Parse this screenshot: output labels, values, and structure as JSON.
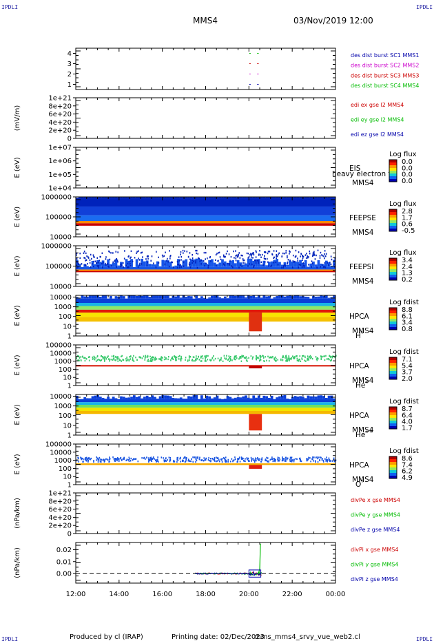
{
  "header": {
    "corner_label": "IPDLI",
    "spacecraft": "MMS4",
    "datetime": "03/Nov/2019 12:00"
  },
  "footer": {
    "producer": "Produced by cl (IRAP)",
    "printing_date": "Printing date: 02/Dec/2023",
    "file_name": "mms_mms4_srvy_vue_web2.cl"
  },
  "chart_data": {
    "type": "heatmap",
    "x_ticks": [
      "12:00",
      "14:00",
      "16:00",
      "18:00",
      "20:00",
      "22:00",
      "00:00"
    ],
    "x_range_hours": [
      12,
      24
    ],
    "panels": [
      {
        "id": "burst",
        "plot": "availability",
        "y_ticks": [
          "1",
          "2",
          "3",
          "4"
        ],
        "ylim": [
          0.5,
          4.5
        ],
        "legend": [
          {
            "label": "des dist burst SC1 MMS1",
            "color": "#0000aa"
          },
          {
            "label": "des dist burst SC2 MMS2",
            "color": "#cc00cc"
          },
          {
            "label": "des dist burst SC3 MMS3",
            "color": "#cc0000"
          },
          {
            "label": "des dist burst SC4 MMS4",
            "color": "#00bb00"
          }
        ],
        "segments": [
          {
            "sc": 1,
            "t": [
              20.02,
              20.08
            ]
          },
          {
            "sc": 1,
            "t": [
              20.38,
              20.45
            ]
          },
          {
            "sc": 2,
            "t": [
              20.02,
              20.08
            ]
          },
          {
            "sc": 2,
            "t": [
              20.38,
              20.45
            ]
          },
          {
            "sc": 3,
            "t": [
              20.02,
              20.08
            ]
          },
          {
            "sc": 3,
            "t": [
              20.38,
              20.45
            ]
          },
          {
            "sc": 4,
            "t": [
              20.02,
              20.08
            ]
          },
          {
            "sc": 4,
            "t": [
              20.38,
              20.45
            ]
          }
        ]
      },
      {
        "id": "edi",
        "plot": "line",
        "ylabel": "(mV/m)",
        "y_ticks": [
          "0",
          "2e+20",
          "4e+20",
          "6e+20",
          "8e+20",
          "1e+21"
        ],
        "ylim": [
          0,
          1e+21
        ],
        "legend": [
          {
            "label": "edi ex gse l2 MMS4",
            "color": "#cc0000"
          },
          {
            "label": "edi ey gse l2 MMS4",
            "color": "#00bb00"
          },
          {
            "label": "edi ez gse l2 MMS4",
            "color": "#0000aa"
          }
        ]
      },
      {
        "id": "eis",
        "plot": "spectrogram",
        "ylabel": "E (eV)",
        "y_ticks": [
          "1e+04",
          "1e+05",
          "1e+06",
          "1e+07"
        ],
        "ylim": [
          10000.0,
          10000000.0
        ],
        "instrument": "EIS",
        "instrument_sub": "MMS4",
        "overlay": "heavy electron to",
        "cbar_title": "Log flux",
        "cbar_ticks": [
          "0.0",
          "0.0",
          "0.0",
          "0.0"
        ]
      },
      {
        "id": "feepse",
        "plot": "spectrogram",
        "ylabel": "E (eV)",
        "y_ticks": [
          "10000",
          "100000",
          "1000000"
        ],
        "ylim": [
          10000,
          1000000
        ],
        "instrument": "FEEPSE",
        "instrument_sub": "MMS4",
        "cbar_title": "Log flux",
        "cbar_ticks": [
          "2.8",
          "1.7",
          "0.6",
          "-0.5"
        ],
        "coverage": [
          12,
          24
        ],
        "bands": [
          {
            "lo": 36000,
            "hi": 48000,
            "color": "#c80000"
          },
          {
            "lo": 48000,
            "hi": 62000,
            "color": "#ff8a00"
          },
          {
            "lo": 62000,
            "hi": 120000,
            "color": "#1a6cf0"
          },
          {
            "lo": 120000,
            "hi": 330000,
            "color": "#1140d8"
          },
          {
            "lo": 330000,
            "hi": 900000,
            "color": "#0022bb"
          }
        ]
      },
      {
        "id": "feepsi",
        "plot": "spectrogram",
        "ylabel": "E (eV)",
        "y_ticks": [
          "10000",
          "100000",
          "1000000"
        ],
        "ylim": [
          10000,
          1000000
        ],
        "instrument": "FEEPSI",
        "instrument_sub": "MMS4",
        "cbar_title": "Log flux",
        "cbar_ticks": [
          "3.4",
          "2.4",
          "1.3",
          "0.2"
        ],
        "coverage": [
          12,
          24
        ],
        "bands": [
          {
            "lo": 50000,
            "hi": 58000,
            "color": "#c80000"
          },
          {
            "lo": 58000,
            "hi": 68000,
            "color": "#ff9a00"
          },
          {
            "lo": 68000,
            "hi": 90000,
            "color": "#1655e8"
          }
        ],
        "speckle": {
          "lo": 90000,
          "hi": 650000,
          "color": "#0022bb"
        }
      },
      {
        "id": "hpca_h",
        "plot": "spectrogram",
        "ylabel": "E (eV)",
        "y_ticks": [
          "1",
          "10",
          "100",
          "1000",
          "10000"
        ],
        "ylim": [
          1,
          15000
        ],
        "instrument": "HPCA",
        "instrument_sub": "MMS4",
        "species": "H",
        "species_charge": "+",
        "cbar_title": "Log fdist",
        "cbar_ticks": [
          "8.8",
          "6.1",
          "3.4",
          "0.8"
        ],
        "coverage": [
          12,
          24
        ],
        "bands": [
          {
            "lo": 2500,
            "hi": 7000,
            "color": "#0a3fd8"
          },
          {
            "lo": 1200,
            "hi": 2500,
            "color": "#18b4e8"
          },
          {
            "lo": 500,
            "hi": 1200,
            "color": "#8ee86a"
          },
          {
            "lo": 250,
            "hi": 500,
            "color": "#e0180a"
          },
          {
            "lo": 90,
            "hi": 250,
            "color": "#f8e200"
          },
          {
            "lo": 30,
            "hi": 90,
            "color": "#f5c000"
          }
        ],
        "event": {
          "t": [
            20.0,
            20.6
          ],
          "lo": 3,
          "hi": 250,
          "color": "#e03010"
        }
      },
      {
        "id": "hpca_he",
        "plot": "spectrogram",
        "ylabel": "E (eV)",
        "y_ticks": [
          "1",
          "10",
          "100",
          "1000",
          "10000",
          "100000"
        ],
        "ylim": [
          1,
          100000
        ],
        "instrument": "HPCA",
        "instrument_sub": "MMS4",
        "species": "He",
        "species_charge": "+",
        "cbar_title": "Log fdist",
        "cbar_ticks": [
          "7.1",
          "5.4",
          "3.7",
          "2.0"
        ],
        "coverage": [
          12,
          24
        ],
        "bands": [
          {
            "lo": 220,
            "hi": 330,
            "color": "#d81a0a"
          }
        ],
        "speckle": {
          "lo": 1200,
          "hi": 6000,
          "color": "#36c86a"
        },
        "event": {
          "t": [
            20.0,
            20.6
          ],
          "lo": 130,
          "hi": 260,
          "color": "#c00000"
        }
      },
      {
        "id": "hpca_hepp",
        "plot": "spectrogram",
        "ylabel": "E (eV)",
        "y_ticks": [
          "1",
          "10",
          "100",
          "1000",
          "10000"
        ],
        "ylim": [
          1,
          15000
        ],
        "instrument": "HPCA",
        "instrument_sub": "MMS4",
        "species": "He",
        "species_charge": "++",
        "cbar_title": "Log fdist",
        "cbar_ticks": [
          "8.7",
          "6.4",
          "4.0",
          "1.7"
        ],
        "coverage": [
          12,
          24
        ],
        "bands": [
          {
            "lo": 2400,
            "hi": 5000,
            "color": "#0a3fd8"
          },
          {
            "lo": 1300,
            "hi": 2400,
            "color": "#18b4e8"
          },
          {
            "lo": 650,
            "hi": 1300,
            "color": "#70e060"
          },
          {
            "lo": 300,
            "hi": 650,
            "color": "#f2e400"
          },
          {
            "lo": 150,
            "hi": 300,
            "color": "#f5b800"
          }
        ],
        "event": {
          "t": [
            20.0,
            20.6
          ],
          "lo": 3,
          "hi": 150,
          "color": "#e83010"
        }
      },
      {
        "id": "hpca_o",
        "plot": "spectrogram",
        "ylabel": "E (eV)",
        "y_ticks": [
          "1",
          "10",
          "100",
          "1000",
          "10000",
          "100000"
        ],
        "ylim": [
          1,
          100000
        ],
        "instrument": "HPCA",
        "instrument_sub": "MMS4",
        "species": "O",
        "species_charge": "+",
        "cbar_title": "Log fdist",
        "cbar_ticks": [
          "8.6",
          "7.4",
          "6.2",
          "4.9"
        ],
        "coverage": [
          12,
          24
        ],
        "bands": [
          {
            "lo": 260,
            "hi": 420,
            "color": "#f5a800"
          }
        ],
        "speckle": {
          "lo": 800,
          "hi": 3000,
          "color": "#1a55e0"
        },
        "event": {
          "t": [
            20.0,
            20.6
          ],
          "lo": 90,
          "hi": 260,
          "color": "#e02010"
        }
      },
      {
        "id": "divpe",
        "plot": "line",
        "ylabel": "(nPa/km)",
        "y_ticks": [
          "0",
          "2e+20",
          "4e+20",
          "6e+20",
          "8e+20",
          "1e+21"
        ],
        "ylim": [
          0,
          1e+21
        ],
        "legend": [
          {
            "label": "divPe x gse MMS4",
            "color": "#cc0000"
          },
          {
            "label": "divPe y gse MMS4",
            "color": "#00bb00"
          },
          {
            "label": "divPe z gse MMS4",
            "color": "#0000aa"
          }
        ]
      },
      {
        "id": "divpi",
        "plot": "line",
        "ylabel": "(nPa/km)",
        "y_ticks": [
          "0.00",
          "0.01",
          "0.02"
        ],
        "ylim": [
          -0.008,
          0.026
        ],
        "legend": [
          {
            "label": "divPi x gse MMS4",
            "color": "#cc0000"
          },
          {
            "label": "divPi y gse MMS4",
            "color": "#00bb00"
          },
          {
            "label": "divPi z gse MMS4",
            "color": "#0000aa"
          }
        ],
        "data_window": [
          17.5,
          20.6
        ],
        "spike": {
          "t": 20.5,
          "value": 0.025
        }
      }
    ]
  }
}
